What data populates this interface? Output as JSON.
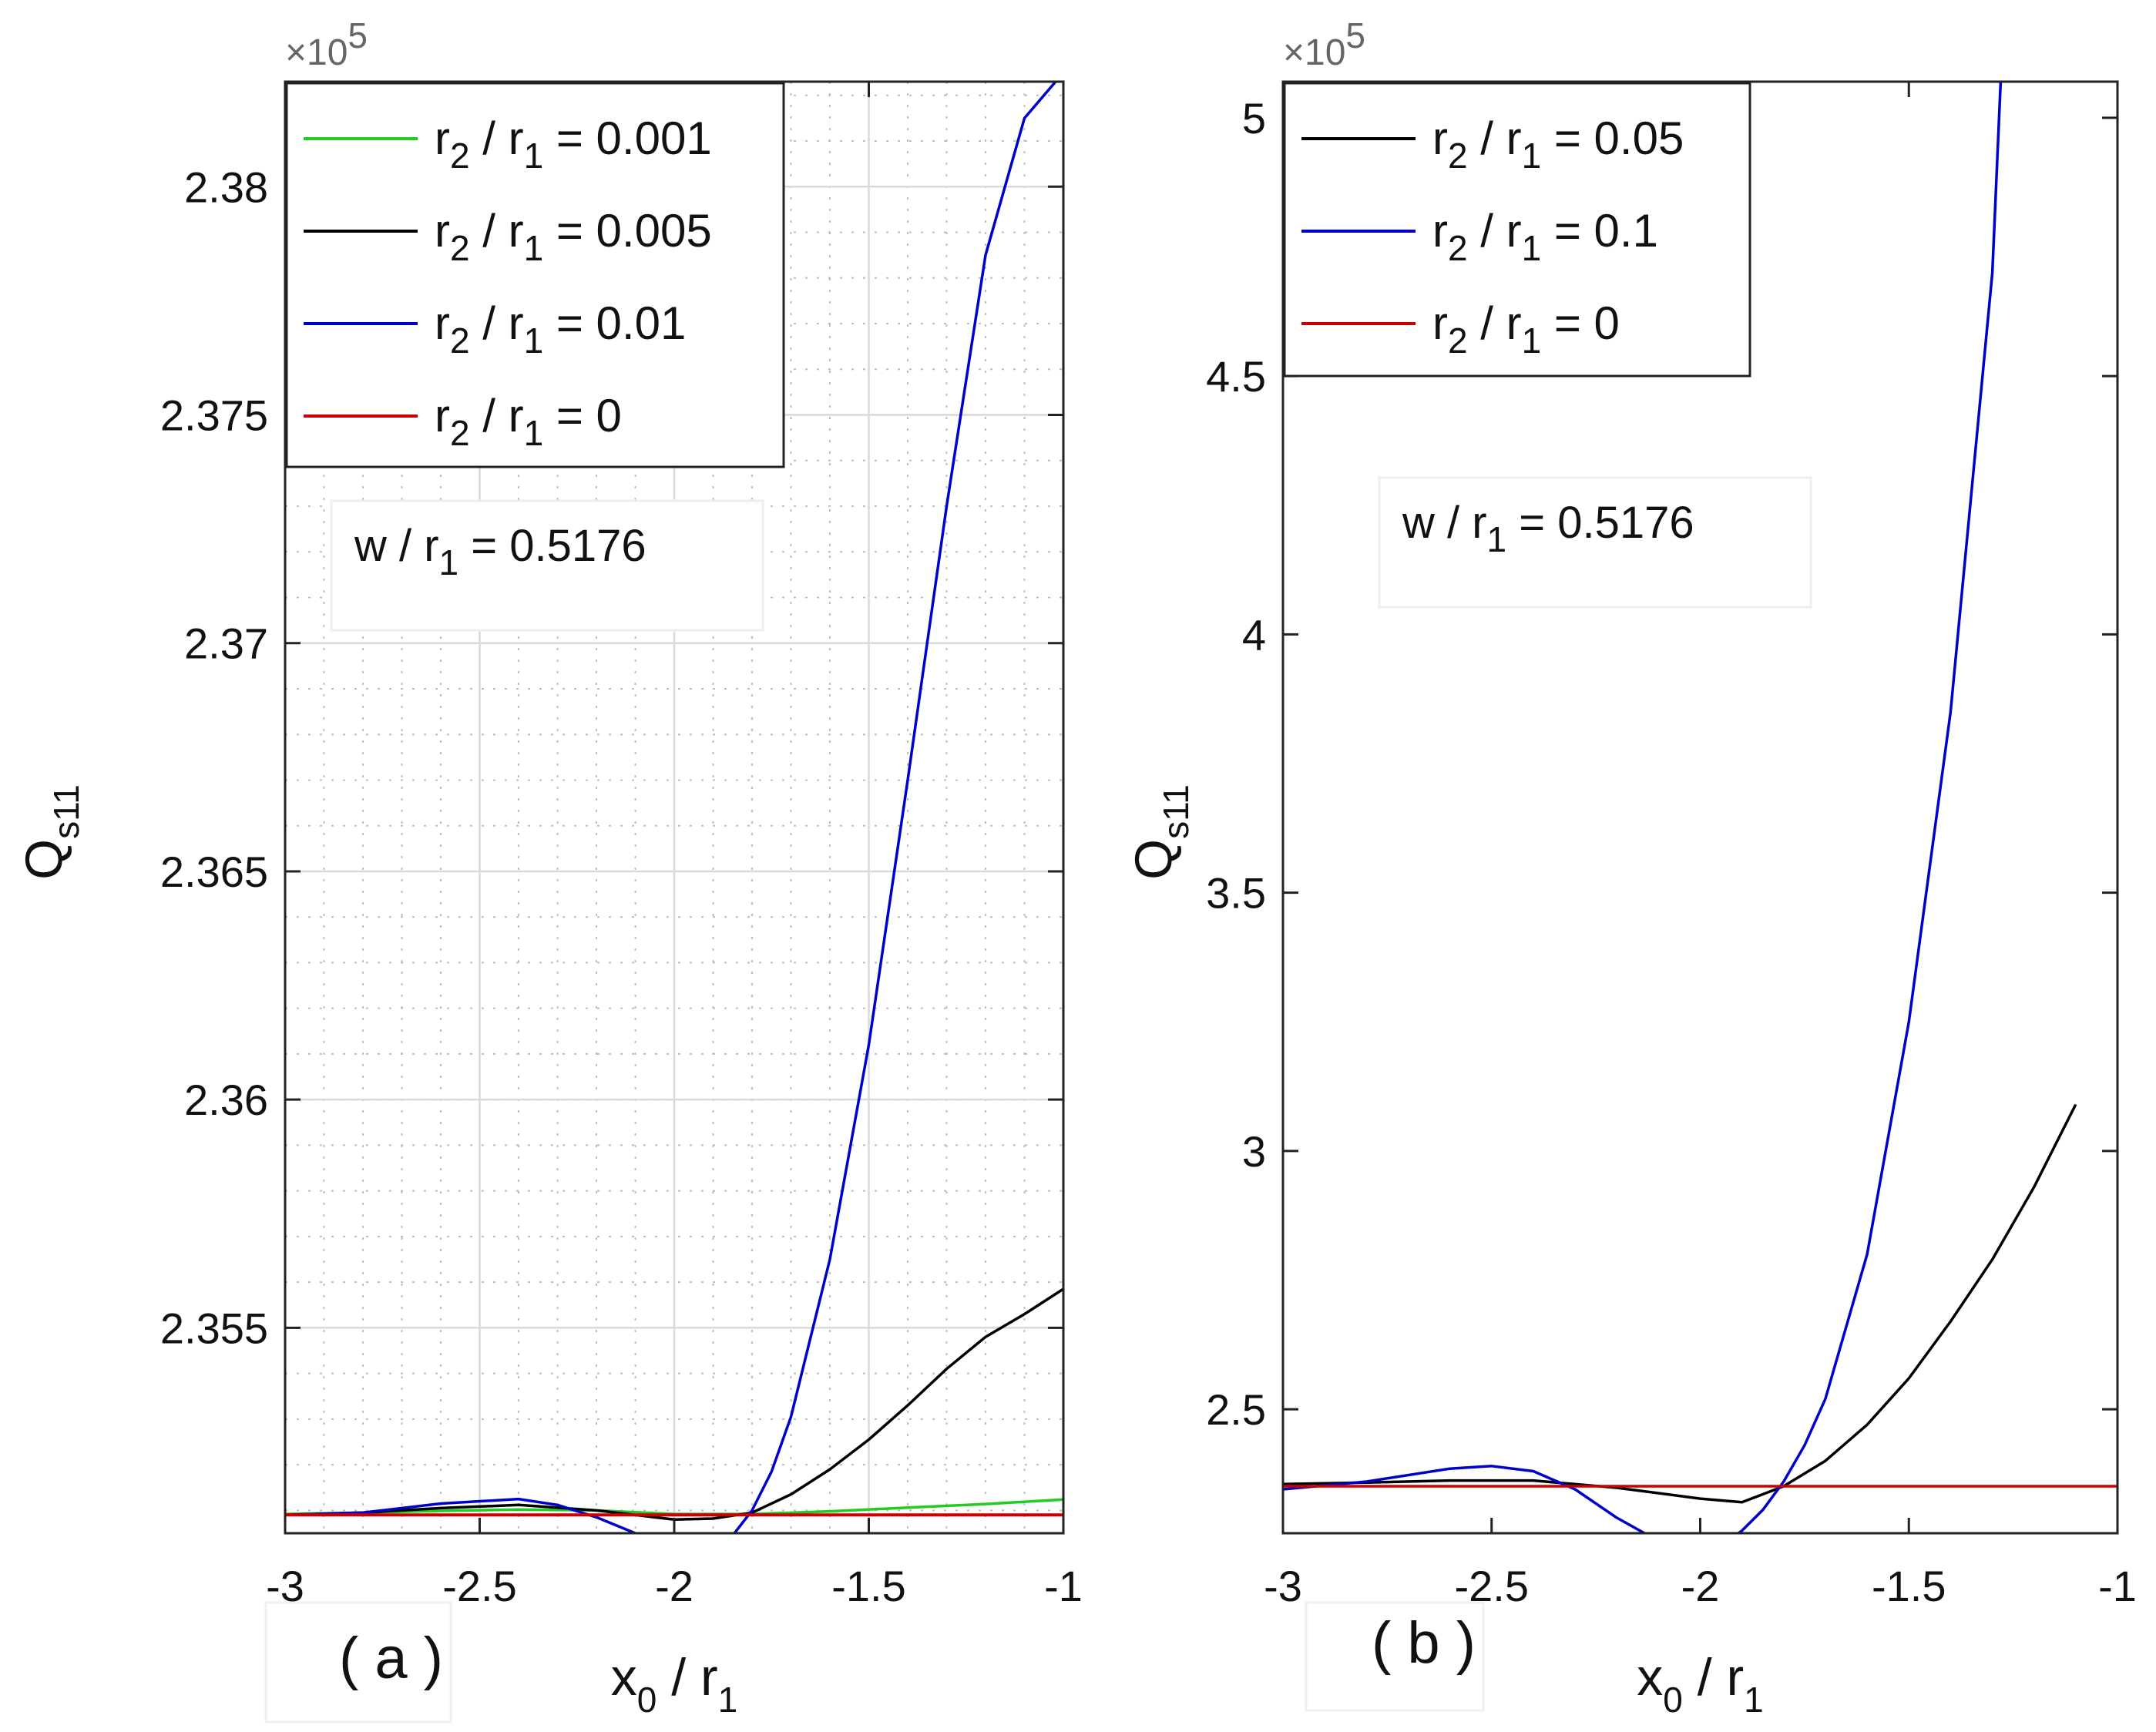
{
  "chart_data": [
    {
      "id": "a",
      "type": "line",
      "panel_label": "( a )",
      "xlabel": {
        "main": "x",
        "sub": "0",
        "rest": " / r",
        "sub2": "1"
      },
      "ylabel": {
        "main": "Q",
        "sub": "s11"
      },
      "y_multiplier": {
        "prefix": "×10",
        "exp": "5"
      },
      "xlim": [
        -3,
        -1
      ],
      "ylim": [
        2.3505,
        2.3823
      ],
      "grid": true,
      "minor_grid": true,
      "xticks": [
        -3,
        -2.5,
        -2,
        -1.5,
        -1
      ],
      "xtick_labels": [
        "-3",
        "-2.5",
        "-2",
        "-1.5",
        "-1"
      ],
      "yticks": [
        2.355,
        2.36,
        2.365,
        2.37,
        2.375,
        2.38
      ],
      "ytick_labels": [
        "2.355",
        "2.36",
        "2.365",
        "2.37",
        "2.375",
        "2.38"
      ],
      "minor_y_step": 0.001,
      "legend_placement": "top-left",
      "legend": [
        {
          "label": "r / r = 0.001",
          "parts": [
            "r",
            "2",
            " / r",
            "1",
            " = 0.001"
          ],
          "color": "#22cc22"
        },
        {
          "label": "r / r = 0.005",
          "parts": [
            "r",
            "2",
            " / r",
            "1",
            " = 0.005"
          ],
          "color": "#000000"
        },
        {
          "label": "r / r = 0.01",
          "parts": [
            "r",
            "2",
            " / r",
            "1",
            " = 0.01"
          ],
          "color": "#0000cc"
        },
        {
          "label": "r / r = 0",
          "parts": [
            "r",
            "2",
            " / r",
            "1",
            " = 0"
          ],
          "color": "#cc0000"
        }
      ],
      "annotation": {
        "parts": [
          "w / r",
          "1",
          " = 0.5176"
        ]
      },
      "series": [
        {
          "name": "r2/r1 = 0.001",
          "color": "#22cc22",
          "x": [
            -3,
            -2.8,
            -2.6,
            -2.4,
            -2.2,
            -2.0,
            -1.8,
            -1.6,
            -1.4,
            -1.2,
            -1.0
          ],
          "y": [
            2.35092,
            2.35095,
            2.35099,
            2.35102,
            2.351,
            2.35092,
            2.35092,
            2.35098,
            2.35106,
            2.35114,
            2.35124
          ]
        },
        {
          "name": "r2/r1 = 0.005",
          "color": "#000000",
          "x": [
            -3,
            -2.8,
            -2.6,
            -2.4,
            -2.2,
            -2.0,
            -1.9,
            -1.8,
            -1.7,
            -1.6,
            -1.5,
            -1.4,
            -1.3,
            -1.2,
            -1.1,
            -1.0
          ],
          "y": [
            2.3509,
            2.35095,
            2.35105,
            2.35112,
            2.351,
            2.3508,
            2.35082,
            2.35095,
            2.35135,
            2.3519,
            2.35255,
            2.3533,
            2.3541,
            2.3548,
            2.3553,
            2.35585
          ]
        },
        {
          "name": "r2/r1 = 0.01",
          "color": "#0000cc",
          "x": [
            -3,
            -2.8,
            -2.6,
            -2.4,
            -2.3,
            -2.2,
            -2.1,
            -2.0,
            -1.95,
            -1.9,
            -1.85,
            -1.8,
            -1.75,
            -1.7,
            -1.6,
            -1.5,
            -1.4,
            -1.3,
            -1.2,
            -1.1,
            -1.0
          ],
          "y": [
            2.3509,
            2.35095,
            2.35115,
            2.35125,
            2.35112,
            2.35085,
            2.3505,
            2.35015,
            2.35005,
            2.35015,
            2.35045,
            2.351,
            2.35185,
            2.35305,
            2.3565,
            2.3612,
            2.367,
            2.373,
            2.3785,
            2.3815,
            2.3825
          ]
        },
        {
          "name": "r2/r1 = 0",
          "color": "#cc0000",
          "x": [
            -3,
            -1
          ],
          "y": [
            2.3509,
            2.3509
          ]
        }
      ]
    },
    {
      "id": "b",
      "type": "line",
      "panel_label": "( b )",
      "xlabel": {
        "main": "x",
        "sub": "0",
        "rest": " / r",
        "sub2": "1"
      },
      "ylabel": {
        "main": "Q",
        "sub": "s11"
      },
      "y_multiplier": {
        "prefix": "×10",
        "exp": "5"
      },
      "xlim": [
        -3,
        -1
      ],
      "ylim": [
        2.26,
        5.07
      ],
      "grid": false,
      "minor_grid": false,
      "xticks": [
        -3,
        -2.5,
        -2,
        -1.5,
        -1
      ],
      "xtick_labels": [
        "-3",
        "-2.5",
        "-2",
        "-1.5",
        "-1"
      ],
      "yticks": [
        2.5,
        3,
        3.5,
        4,
        4.5,
        5
      ],
      "ytick_labels": [
        "2.5",
        "3",
        "3.5",
        "4",
        "4.5",
        "5"
      ],
      "legend_placement": "top-left",
      "legend": [
        {
          "label": "r / r = 0.05",
          "parts": [
            "r",
            "2",
            " / r",
            "1",
            " = 0.05"
          ],
          "color": "#000000"
        },
        {
          "label": "r / r = 0.1",
          "parts": [
            "r",
            "2",
            " / r",
            "1",
            " = 0.1"
          ],
          "color": "#0000cc"
        },
        {
          "label": "r / r = 0",
          "parts": [
            "r",
            "2",
            " / r",
            "1",
            " = 0"
          ],
          "color": "#cc0000"
        }
      ],
      "annotation": {
        "parts": [
          "w / r",
          "1",
          " = 0.5176"
        ]
      },
      "series": [
        {
          "name": "r2/r1 = 0.05",
          "color": "#000000",
          "x": [
            -3,
            -2.8,
            -2.6,
            -2.4,
            -2.2,
            -2.0,
            -1.9,
            -1.8,
            -1.7,
            -1.6,
            -1.5,
            -1.4,
            -1.3,
            -1.2,
            -1.1
          ],
          "y": [
            2.355,
            2.358,
            2.362,
            2.362,
            2.348,
            2.327,
            2.32,
            2.351,
            2.4,
            2.47,
            2.56,
            2.67,
            2.79,
            2.93,
            3.09
          ]
        },
        {
          "name": "r2/r1 = 0.1",
          "color": "#0000cc",
          "x": [
            -3,
            -2.8,
            -2.6,
            -2.5,
            -2.4,
            -2.3,
            -2.2,
            -2.1,
            -2.05,
            -2.0,
            -1.95,
            -1.9,
            -1.85,
            -1.8,
            -1.75,
            -1.7,
            -1.6,
            -1.5,
            -1.4,
            -1.3,
            -1.28
          ],
          "y": [
            2.345,
            2.36,
            2.385,
            2.39,
            2.38,
            2.345,
            2.29,
            2.245,
            2.23,
            2.225,
            2.235,
            2.265,
            2.305,
            2.36,
            2.43,
            2.52,
            2.8,
            3.25,
            3.85,
            4.7,
            5.07
          ]
        },
        {
          "name": "r2/r1 = 0",
          "color": "#cc0000",
          "x": [
            -3,
            -1
          ],
          "y": [
            2.351,
            2.351
          ]
        }
      ]
    }
  ]
}
